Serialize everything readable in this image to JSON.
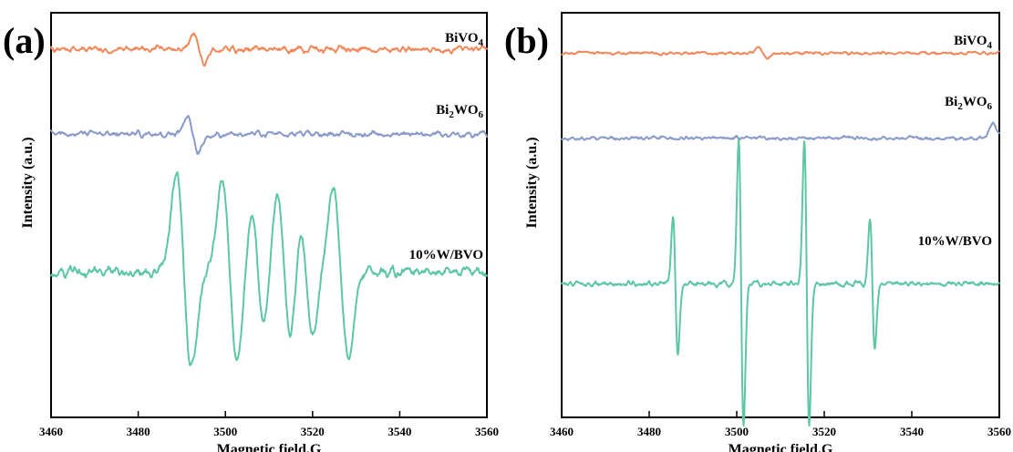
{
  "chart_data": [
    {
      "type": "line",
      "panel_label": "(a)",
      "xlabel": "Magnetic field.G",
      "ylabel": "Intensity (a.u.)",
      "xlim": [
        3460,
        3560
      ],
      "x_ticks": [
        "3460",
        "3480",
        "3500",
        "3520",
        "3540",
        "3560"
      ],
      "y_ticks_shown": false,
      "legend_style": "inline labels to the right above each trace",
      "series": [
        {
          "name": "BiVO4",
          "label_base": "BiVO",
          "label_sub": "4",
          "label_tail": "",
          "color": "#F08A5D",
          "baseline": 0.91,
          "noise": 0.014,
          "features": [
            {
              "type": "derivative",
              "x": 3494,
              "amp": 0.035,
              "width": 1.2
            }
          ],
          "peaks": [],
          "data_points": [
            [
              3460,
              0.91
            ],
            [
              3470,
              0.92
            ],
            [
              3480,
              0.91
            ],
            [
              3490,
              0.92
            ],
            [
              3494,
              0.88
            ],
            [
              3500,
              0.91
            ],
            [
              3510,
              0.92
            ],
            [
              3520,
              0.9
            ],
            [
              3530,
              0.91
            ],
            [
              3540,
              0.92
            ],
            [
              3550,
              0.91
            ],
            [
              3560,
              0.92
            ]
          ]
        },
        {
          "name": "Bi2WO6",
          "label_base": "Bi",
          "label_sub": "2",
          "label_tail": "WO6",
          "color": "#8B9BC9",
          "baseline": 0.7,
          "noise": 0.013,
          "features": [
            {
              "type": "derivative",
              "x": 3492.5,
              "amp": 0.045,
              "width": 1.2
            }
          ],
          "peaks": [],
          "data_points": [
            [
              3460,
              0.7
            ],
            [
              3470,
              0.71
            ],
            [
              3480,
              0.7
            ],
            [
              3490,
              0.73
            ],
            [
              3493,
              0.66
            ],
            [
              3500,
              0.69
            ],
            [
              3510,
              0.74
            ],
            [
              3520,
              0.68
            ],
            [
              3530,
              0.71
            ],
            [
              3540,
              0.7
            ],
            [
              3550,
              0.7
            ],
            [
              3560,
              0.7
            ]
          ]
        },
        {
          "name": "10%W/BVO",
          "label_base": "10%W/BVO",
          "label_sub": "",
          "label_tail": "",
          "color": "#5CC7A0",
          "baseline": 0.36,
          "noise": 0.022,
          "features": [
            {
              "type": "derivative",
              "x": 3490.5,
              "amp": 0.24,
              "width": 1.7
            },
            {
              "type": "derivative",
              "x": 3501.0,
              "amp": 0.22,
              "width": 1.7
            },
            {
              "type": "derivative",
              "x": 3507.5,
              "amp": 0.15,
              "width": 1.5
            },
            {
              "type": "derivative",
              "x": 3513.5,
              "amp": 0.2,
              "width": 1.7
            },
            {
              "type": "derivative",
              "x": 3518.5,
              "amp": 0.16,
              "width": 1.5
            },
            {
              "type": "derivative",
              "x": 3526.5,
              "amp": 0.21,
              "width": 1.7
            }
          ],
          "peaks": [
            {
              "x": 3488.5,
              "y": 0.6
            },
            {
              "x": 3492.5,
              "y": 0.12
            },
            {
              "x": 3497.5,
              "y": 0.61
            },
            {
              "x": 3505.5,
              "y": 0.1
            },
            {
              "x": 3511.0,
              "y": 0.58
            },
            {
              "x": 3520.0,
              "y": 0.06
            },
            {
              "x": 3525.0,
              "y": 0.48
            },
            {
              "x": 3528.5,
              "y": 0.03
            }
          ]
        }
      ]
    },
    {
      "type": "line",
      "panel_label": "(b)",
      "xlabel": "Magnetic field.G",
      "ylabel": "Intensity (a.u.)",
      "xlim": [
        3460,
        3560
      ],
      "x_ticks": [
        "3460",
        "3480",
        "3500",
        "3520",
        "3540",
        "3560"
      ],
      "y_ticks_shown": false,
      "legend_style": "inline labels to the right above each trace",
      "series": [
        {
          "name": "BiVO4",
          "label_base": "BiVO",
          "label_sub": "4",
          "label_tail": "",
          "color": "#F08A5D",
          "baseline": 0.9,
          "noise": 0.007,
          "features": [
            {
              "type": "derivative",
              "x": 3506.0,
              "amp": 0.012,
              "width": 1.0
            }
          ],
          "peaks": [],
          "data_points": [
            [
              3460,
              0.9
            ],
            [
              3480,
              0.9
            ],
            [
              3500,
              0.9
            ],
            [
              3506,
              0.89
            ],
            [
              3520,
              0.9
            ],
            [
              3540,
              0.9
            ],
            [
              3560,
              0.9
            ]
          ]
        },
        {
          "name": "Bi2WO6",
          "label_base": "Bi",
          "label_sub": "2",
          "label_tail": "WO6",
          "color": "#8B9BC9",
          "baseline": 0.69,
          "noise": 0.009,
          "features": [
            {
              "type": "bump",
              "x": 3558.5,
              "amp": 0.035,
              "width": 0.8
            }
          ],
          "peaks": [],
          "data_points": [
            [
              3460,
              0.69
            ],
            [
              3480,
              0.69
            ],
            [
              3500,
              0.69
            ],
            [
              3520,
              0.69
            ],
            [
              3540,
              0.69
            ],
            [
              3558,
              0.73
            ],
            [
              3560,
              0.68
            ]
          ]
        },
        {
          "name": "10%W/BVO",
          "label_base": "10%W/BVO",
          "label_sub": "",
          "label_tail": "",
          "color": "#5CC7A0",
          "baseline": 0.33,
          "noise": 0.012,
          "features": [
            {
              "type": "derivative",
              "x": 3486.0,
              "amp": 0.17,
              "width": 0.55
            },
            {
              "type": "derivative",
              "x": 3501.0,
              "amp": 0.35,
              "width": 0.55
            },
            {
              "type": "derivative",
              "x": 3516.0,
              "amp": 0.35,
              "width": 0.55
            },
            {
              "type": "derivative",
              "x": 3531.0,
              "amp": 0.16,
              "width": 0.55
            }
          ],
          "peaks": [
            {
              "x": 3485.5,
              "y": 0.5
            },
            {
              "x": 3486.8,
              "y": 0.17
            },
            {
              "x": 3500.3,
              "y": 0.68
            },
            {
              "x": 3501.7,
              "y": 0.0
            },
            {
              "x": 3515.6,
              "y": 0.68
            },
            {
              "x": 3516.7,
              "y": 0.01
            },
            {
              "x": 3530.5,
              "y": 0.48
            },
            {
              "x": 3531.8,
              "y": 0.17
            }
          ]
        }
      ]
    }
  ]
}
